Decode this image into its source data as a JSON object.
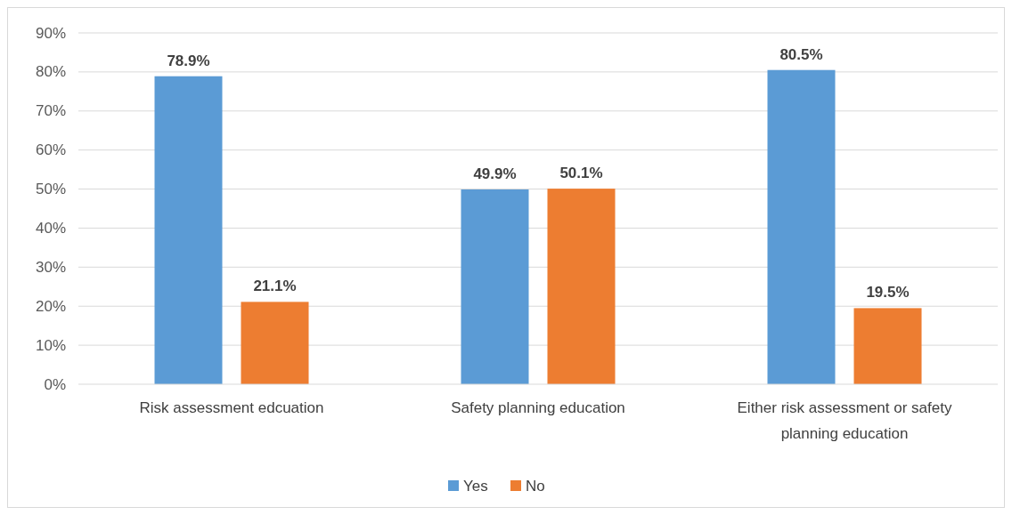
{
  "chart_data": {
    "type": "bar",
    "categories": [
      "Risk assessment edcuation",
      "Safety planning education",
      "Either risk assessment or safety planning education"
    ],
    "series": [
      {
        "name": "Yes",
        "color": "#5b9bd5",
        "values": [
          78.9,
          49.9,
          80.5
        ],
        "value_labels": [
          "78.9%",
          "49.9%",
          "80.5%"
        ]
      },
      {
        "name": "No",
        "color": "#ed7d31",
        "values": [
          21.1,
          50.1,
          19.5
        ],
        "value_labels": [
          "21.1%",
          "50.1%",
          "19.5%"
        ]
      }
    ],
    "ylim": [
      0,
      90
    ],
    "yticks": [
      {
        "value": 0,
        "label": "0%"
      },
      {
        "value": 10,
        "label": "10%"
      },
      {
        "value": 20,
        "label": "20%"
      },
      {
        "value": 30,
        "label": "30%"
      },
      {
        "value": 40,
        "label": "40%"
      },
      {
        "value": 50,
        "label": "50%"
      },
      {
        "value": 60,
        "label": "60%"
      },
      {
        "value": 70,
        "label": "70%"
      },
      {
        "value": 80,
        "label": "80%"
      },
      {
        "value": 90,
        "label": "90%"
      }
    ],
    "grid": "y",
    "legend": "bottom"
  }
}
